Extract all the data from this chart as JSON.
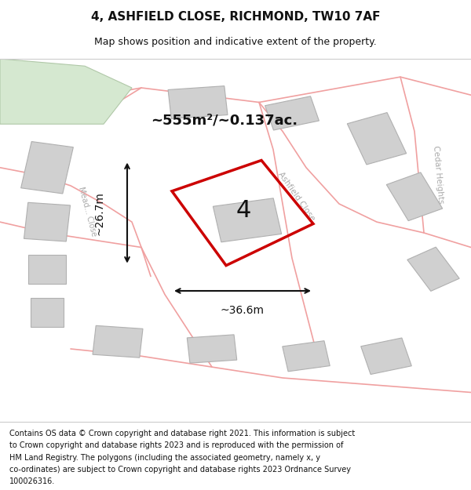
{
  "title_line1": "4, ASHFIELD CLOSE, RICHMOND, TW10 7AF",
  "title_line2": "Map shows position and indicative extent of the property.",
  "footer_lines": [
    "Contains OS data © Crown copyright and database right 2021. This information is subject",
    "to Crown copyright and database rights 2023 and is reproduced with the permission of",
    "HM Land Registry. The polygons (including the associated geometry, namely x, y",
    "co-ordinates) are subject to Crown copyright and database rights 2023 Ordnance Survey",
    "100026316."
  ],
  "area_label": "~555m²/~0.137ac.",
  "width_label": "~36.6m",
  "height_label": "~26.7m",
  "plot_number": "4",
  "map_bg": "#f5f5f0",
  "plot_edge_color": "#cc0000",
  "plot_linewidth": 2.5,
  "road_color": "#f0a0a0",
  "building_color": "#d0d0d0",
  "building_edge": "#b0b0b0",
  "street_label_color": "#aaaaaa",
  "dim_color": "#111111",
  "title_fontsize": 11,
  "subtitle_fontsize": 9,
  "footer_fontsize": 7.0,
  "green_color": "#d5e8d0",
  "green_edge": "#b0c8a8"
}
